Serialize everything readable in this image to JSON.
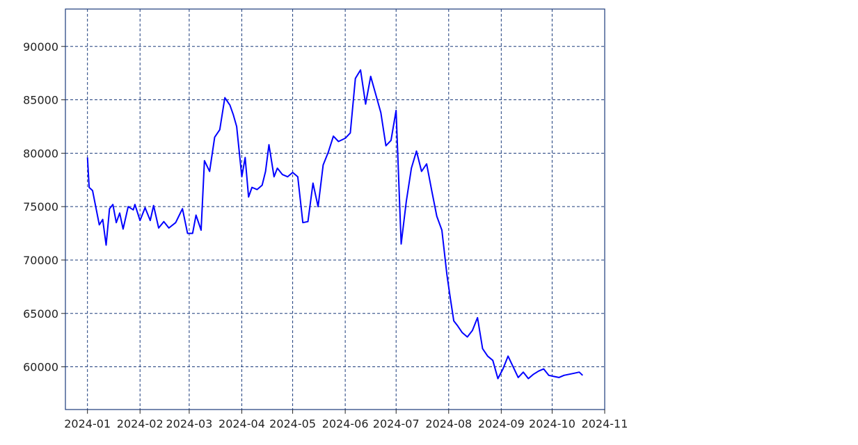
{
  "chart_data": {
    "type": "line",
    "title": "",
    "xlabel": "",
    "ylabel": "",
    "grid": true,
    "xlim": [
      "2023-12-19",
      "2024-11-01"
    ],
    "ylim": [
      56000,
      93500
    ],
    "x_ticks": [
      "2024-01-01",
      "2024-02-01",
      "2024-03-01",
      "2024-04-01",
      "2024-05-01",
      "2024-06-01",
      "2024-07-01",
      "2024-08-01",
      "2024-09-01",
      "2024-10-01",
      "2024-11-01"
    ],
    "x_tick_labels": [
      "2024-01",
      "2024-02",
      "2024-03",
      "2024-04",
      "2024-05",
      "2024-06",
      "2024-07",
      "2024-08",
      "2024-09",
      "2024-10",
      "2024-11"
    ],
    "y_ticks": [
      60000,
      65000,
      70000,
      75000,
      80000,
      85000,
      90000
    ],
    "y_tick_labels": [
      "60000",
      "65000",
      "70000",
      "75000",
      "80000",
      "85000",
      "90000"
    ],
    "colors": {
      "price": "#0000ff",
      "moving_average": "#2e86c1",
      "bands": "#ff1a1a",
      "grid": "#1a3a7a",
      "axes": "#1a3a7a"
    },
    "series": [
      {
        "key": "price",
        "x": [
          "2024-01-01",
          "2024-01-02",
          "2024-01-04",
          "2024-01-08",
          "2024-01-10",
          "2024-01-12",
          "2024-01-14",
          "2024-01-16",
          "2024-01-18",
          "2024-01-20",
          "2024-01-22",
          "2024-01-25",
          "2024-01-28",
          "2024-01-29",
          "2024-02-01",
          "2024-02-04",
          "2024-02-07",
          "2024-02-09",
          "2024-02-12",
          "2024-02-15",
          "2024-02-18",
          "2024-02-22",
          "2024-02-26",
          "2024-02-29",
          "2024-03-03",
          "2024-03-05",
          "2024-03-08",
          "2024-03-10",
          "2024-03-13",
          "2024-03-16",
          "2024-03-19",
          "2024-03-22",
          "2024-03-25",
          "2024-03-27",
          "2024-03-29",
          "2024-04-01",
          "2024-04-03",
          "2024-04-05",
          "2024-04-07",
          "2024-04-10",
          "2024-04-13",
          "2024-04-15",
          "2024-04-17",
          "2024-04-20",
          "2024-04-22",
          "2024-04-25",
          "2024-04-28",
          "2024-05-01",
          "2024-05-04",
          "2024-05-07",
          "2024-05-10",
          "2024-05-13",
          "2024-05-16",
          "2024-05-19",
          "2024-05-22",
          "2024-05-25",
          "2024-05-28",
          "2024-06-01",
          "2024-06-04",
          "2024-06-07",
          "2024-06-10",
          "2024-06-13",
          "2024-06-16",
          "2024-06-19",
          "2024-06-22",
          "2024-06-25",
          "2024-06-28",
          "2024-07-01",
          "2024-07-04",
          "2024-07-07",
          "2024-07-10",
          "2024-07-13",
          "2024-07-16",
          "2024-07-19",
          "2024-07-22",
          "2024-07-25",
          "2024-07-28",
          "2024-07-31",
          "2024-08-02",
          "2024-08-04",
          "2024-08-06",
          "2024-08-09",
          "2024-08-12",
          "2024-08-15",
          "2024-08-18",
          "2024-08-21",
          "2024-08-24",
          "2024-08-27",
          "2024-08-30",
          "2024-09-02",
          "2024-09-05",
          "2024-09-08",
          "2024-09-11",
          "2024-09-14",
          "2024-09-17",
          "2024-09-20",
          "2024-09-23",
          "2024-09-26",
          "2024-09-29",
          "2024-10-02",
          "2024-10-05",
          "2024-10-08",
          "2024-10-11",
          "2024-10-14",
          "2024-10-17",
          "2024-10-19"
        ],
        "values": [
          79600,
          76800,
          76500,
          73300,
          73800,
          71400,
          74800,
          75200,
          73500,
          74400,
          72900,
          75000,
          74700,
          75200,
          73700,
          74900,
          73700,
          75100,
          73000,
          73600,
          73000,
          73500,
          74800,
          72500,
          72500,
          74200,
          72800,
          79300,
          78300,
          81500,
          82200,
          85200,
          84500,
          83600,
          82500,
          77800,
          79600,
          75900,
          76800,
          76600,
          77000,
          78300,
          80800,
          77800,
          78600,
          78000,
          77800,
          78200,
          77800,
          73500,
          73600,
          77200,
          75000,
          78900,
          80100,
          81600,
          81100,
          81400,
          81900,
          87000,
          87800,
          84600,
          87200,
          85500,
          83800,
          80700,
          81200,
          84000,
          71500,
          75500,
          78600,
          80200,
          78300,
          79000,
          76500,
          74100,
          72800,
          68600,
          66400,
          64300,
          63900,
          63200,
          62800,
          63400,
          64600,
          61700,
          61000,
          60600,
          58900,
          59800,
          61000,
          60000,
          59000,
          59500,
          58900,
          59300,
          59600,
          59800,
          59200,
          59100,
          59000,
          59200,
          59300,
          59400,
          59500,
          59200
        ],
        "values_note": ""
      }
    ]
  }
}
